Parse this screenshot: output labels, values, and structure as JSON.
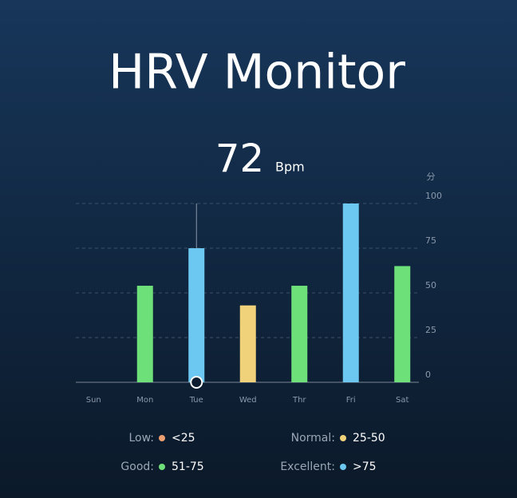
{
  "chart_data": {
    "type": "bar",
    "title": "HRV Monitor",
    "current_value": 72,
    "current_unit": "Bpm",
    "y_unit": "分",
    "categories": [
      "Sun",
      "Mon",
      "Tue",
      "Wed",
      "Thr",
      "Fri",
      "Sat"
    ],
    "values": [
      null,
      54,
      75,
      43,
      54,
      100,
      65
    ],
    "colors": [
      "#6ee07a",
      "#6ee07a",
      "#6cc8f0",
      "#f0d27a",
      "#6ee07a",
      "#6cc8f0",
      "#6ee07a"
    ],
    "selected_index": 2,
    "ylim": [
      0,
      100
    ],
    "yticks": [
      0,
      25,
      50,
      75,
      100
    ],
    "grid": true,
    "legend": [
      {
        "label": "Low:",
        "color": "#f0a070",
        "range": "<25"
      },
      {
        "label": "Normal:",
        "color": "#f0d27a",
        "range": "25-50"
      },
      {
        "label": "Good:",
        "color": "#6ee07a",
        "range": "51-75"
      },
      {
        "label": "Excellent:",
        "color": "#6cc8f0",
        "range": ">75"
      }
    ]
  }
}
